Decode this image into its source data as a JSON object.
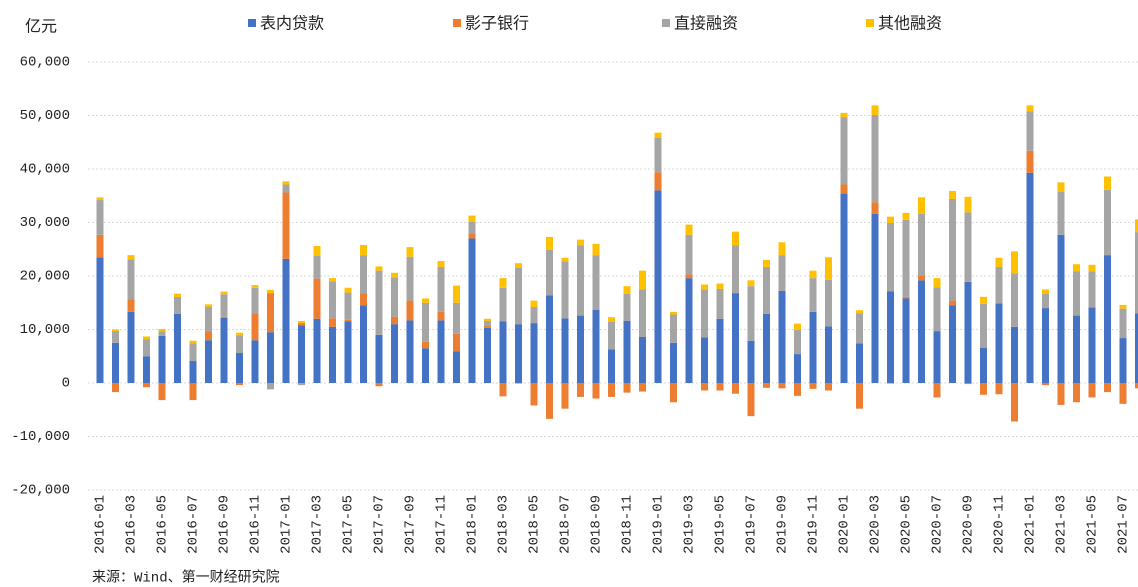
{
  "chart_data": {
    "type": "stacked-bar",
    "y_unit_label": "亿元",
    "source": "来源：Wind、第一财经研究院",
    "categories": [
      "2016-01",
      null,
      "2016-03",
      null,
      "2016-05",
      null,
      "2016-07",
      null,
      "2016-09",
      null,
      "2016-11",
      null,
      "2017-01",
      null,
      "2017-03",
      null,
      "2017-05",
      null,
      "2017-07",
      null,
      "2017-09",
      null,
      "2017-11",
      null,
      "2018-01",
      null,
      "2018-03",
      null,
      "2018-05",
      null,
      "2018-07",
      null,
      "2018-09",
      null,
      "2018-11",
      null,
      "2019-01",
      null,
      "2019-03",
      null,
      "2019-05",
      null,
      "2019-07",
      null,
      "2019-09",
      null,
      "2019-11",
      null,
      "2020-01",
      null,
      "2020-03",
      null,
      "2020-05",
      null,
      "2020-07",
      null,
      "2020-09",
      null,
      "2020-11",
      null,
      "2021-01",
      null,
      "2021-03",
      null,
      "2021-05",
      null,
      "2021-07",
      null
    ],
    "series": [
      {
        "name": "表内贷款",
        "color": "#4472c4",
        "values": [
          23500,
          7500,
          13300,
          5000,
          8800,
          12900,
          4100,
          8000,
          12200,
          5600,
          8000,
          9500,
          23200,
          10800,
          12000,
          10500,
          11500,
          14500,
          9000,
          11000,
          11700,
          6500,
          11700,
          5900,
          27000,
          10300,
          11500,
          11000,
          11200,
          16400,
          12100,
          12600,
          13700,
          6300,
          11600,
          8600,
          36000,
          7500,
          19600,
          8500,
          12000,
          16800,
          7900,
          12900,
          17200,
          5400,
          13300,
          10600,
          35400,
          7400,
          31600,
          17100,
          15800,
          19200,
          9700,
          14500,
          18900,
          6600,
          14900,
          10500,
          39300,
          14000,
          27700,
          12600,
          14100,
          23900,
          8400,
          13000
        ]
      },
      {
        "name": "影子银行",
        "color": "#ed7d31",
        "values": [
          4200,
          -1700,
          2300,
          -800,
          -3200,
          0,
          -3200,
          1700,
          200,
          -400,
          4900,
          7300,
          12400,
          400,
          7500,
          1600,
          300,
          2300,
          -600,
          1400,
          3700,
          1200,
          1600,
          3300,
          1000,
          500,
          -2500,
          -100,
          -4200,
          -6700,
          -4800,
          -2600,
          -2900,
          -2600,
          -1800,
          -1600,
          3400,
          -3600,
          700,
          -1400,
          -1400,
          -2000,
          -6200,
          -900,
          -1000,
          -2400,
          -1100,
          -1400,
          1700,
          -4800,
          2200,
          -100,
          300,
          800,
          -2700,
          900,
          -200,
          -2200,
          -2100,
          -7200,
          4100,
          -400,
          -4100,
          -3600,
          -2700,
          -1700,
          -3900,
          -1000
        ]
      },
      {
        "name": "直接融资",
        "color": "#a5a5a5",
        "values": [
          6500,
          2200,
          7500,
          3200,
          900,
          3200,
          3300,
          4500,
          4200,
          3300,
          4900,
          -1200,
          1500,
          -400,
          4300,
          6900,
          5100,
          7100,
          12000,
          7300,
          8200,
          7300,
          8400,
          5800,
          2100,
          800,
          6300,
          10500,
          3000,
          8500,
          10600,
          13100,
          10200,
          5100,
          5100,
          8900,
          6400,
          5300,
          7400,
          9000,
          5600,
          8900,
          10200,
          8800,
          6700,
          4500,
          6300,
          8700,
          12600,
          5600,
          16300,
          12800,
          14400,
          11600,
          8200,
          19000,
          13000,
          8200,
          6800,
          10000,
          7400,
          2700,
          8000,
          8300,
          6800,
          12200,
          5500,
          15200
        ]
      },
      {
        "name": "其他融资",
        "color": "#ffc000",
        "values": [
          500,
          300,
          800,
          500,
          400,
          600,
          500,
          500,
          500,
          500,
          500,
          600,
          600,
          400,
          1800,
          600,
          900,
          1900,
          800,
          900,
          1800,
          800,
          1100,
          3200,
          1200,
          400,
          1800,
          900,
          1200,
          2400,
          700,
          1100,
          2100,
          900,
          1400,
          3500,
          1000,
          500,
          1900,
          900,
          1000,
          2600,
          1100,
          1300,
          2400,
          1200,
          1400,
          4200,
          800,
          600,
          1800,
          1200,
          1300,
          3100,
          1700,
          1500,
          2900,
          1300,
          1700,
          4100,
          1100,
          800,
          1800,
          1300,
          1200,
          2500,
          700,
          2400
        ]
      }
    ],
    "ylim": [
      -20000,
      60000
    ],
    "yticks": [
      {
        "value": -20000,
        "label": "-20,000"
      },
      {
        "value": -10000,
        "label": "-10,000"
      },
      0,
      {
        "value": 10000,
        "label": "10,000"
      },
      {
        "value": 20000,
        "label": "20,000"
      },
      {
        "value": 30000,
        "label": "30,000"
      },
      {
        "value": 40000,
        "label": "40,000"
      },
      {
        "value": 50000,
        "label": "50,000"
      },
      {
        "value": 60000,
        "label": "60,000"
      }
    ],
    "grid": true
  }
}
